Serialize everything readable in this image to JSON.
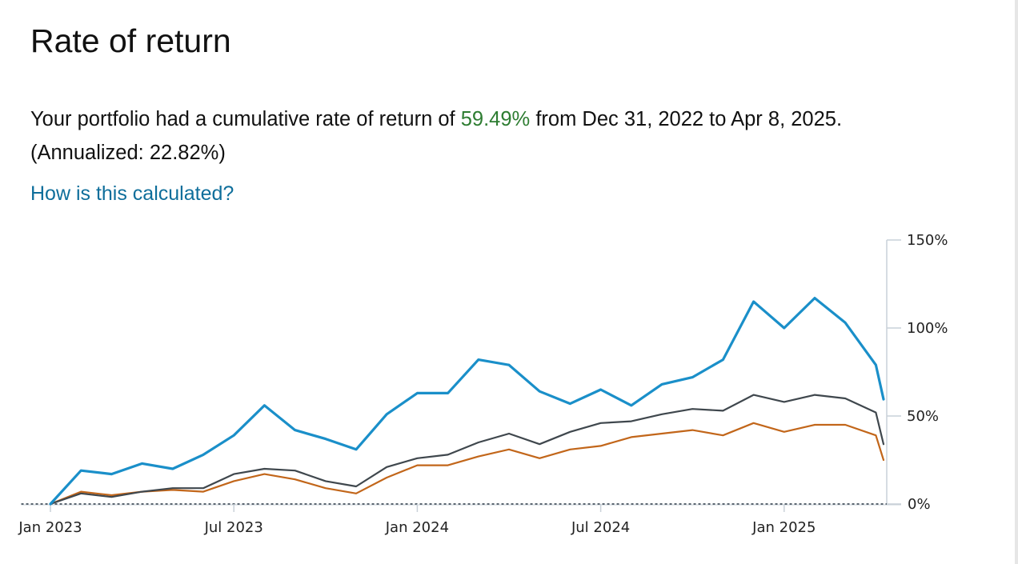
{
  "header": {
    "title": "Rate of return"
  },
  "summary": {
    "prefix": "Your portfolio had a cumulative rate of return of",
    "return_value": "59.49%",
    "suffix": "from Dec 31, 2022 to Apr 8, 2025.",
    "annualized": "(Annualized: 22.82%)"
  },
  "help_link": {
    "label": "How is this calculated?"
  },
  "colors": {
    "positive": "#2e7d32",
    "link": "#0e6e9b",
    "series_portfolio": "#1a8fc9",
    "series_dark": "#3f474d",
    "series_orange": "#c2661a"
  },
  "chart_data": {
    "type": "line",
    "x_tick_labels": [
      "Jan 2023",
      "Jul 2023",
      "Jan 2024",
      "Jul 2024",
      "Jan 2025"
    ],
    "x_tick_positions": [
      0,
      6,
      12,
      18,
      24
    ],
    "y_tick_labels": [
      "150%",
      "100%",
      "50%",
      "0%"
    ],
    "y_tick_values": [
      150,
      100,
      50,
      0
    ],
    "ylim": [
      0,
      150
    ],
    "xlim": [
      -0.3,
      27.5
    ],
    "y_axis_position": "right",
    "zero_line": "dotted",
    "x": [
      0,
      1,
      2,
      3,
      4,
      5,
      6,
      7,
      8,
      9,
      10,
      11,
      12,
      13,
      14,
      15,
      16,
      17,
      18,
      19,
      20,
      21,
      22,
      23,
      24,
      25,
      26,
      27,
      27.25
    ],
    "series": [
      {
        "color": "#1a8fc9",
        "values": [
          0,
          19,
          17,
          23,
          20,
          28,
          39,
          56,
          42,
          37,
          31,
          51,
          63,
          63,
          82,
          79,
          64,
          57,
          65,
          56,
          68,
          72,
          82,
          115,
          100,
          117,
          103,
          79,
          59.49
        ]
      },
      {
        "color": "#3f474d",
        "values": [
          0,
          6,
          4,
          7,
          9,
          9,
          17,
          20,
          19,
          13,
          10,
          21,
          26,
          28,
          35,
          40,
          34,
          41,
          46,
          47,
          51,
          54,
          53,
          62,
          58,
          62,
          60,
          52,
          34
        ]
      },
      {
        "color": "#c2661a",
        "values": [
          0,
          7,
          5,
          7,
          8,
          7,
          13,
          17,
          14,
          9,
          6,
          15,
          22,
          22,
          27,
          31,
          26,
          31,
          33,
          38,
          40,
          42,
          39,
          46,
          41,
          45,
          45,
          39,
          25
        ]
      }
    ]
  }
}
